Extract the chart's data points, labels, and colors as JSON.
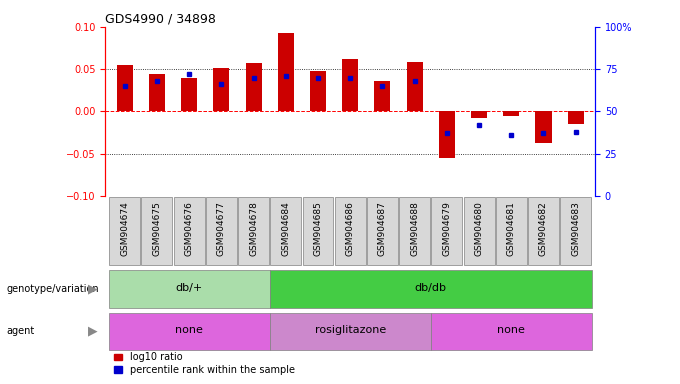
{
  "title": "GDS4990 / 34898",
  "samples": [
    "GSM904674",
    "GSM904675",
    "GSM904676",
    "GSM904677",
    "GSM904678",
    "GSM904684",
    "GSM904685",
    "GSM904686",
    "GSM904687",
    "GSM904688",
    "GSM904679",
    "GSM904680",
    "GSM904681",
    "GSM904682",
    "GSM904683"
  ],
  "log10_ratio": [
    0.055,
    0.044,
    0.039,
    0.051,
    0.057,
    0.093,
    0.048,
    0.062,
    0.036,
    0.059,
    -0.055,
    -0.008,
    -0.005,
    -0.038,
    -0.015
  ],
  "percentile_rank": [
    0.65,
    0.68,
    0.72,
    0.66,
    0.7,
    0.71,
    0.7,
    0.7,
    0.65,
    0.68,
    0.37,
    0.42,
    0.36,
    0.37,
    0.38
  ],
  "genotype": [
    {
      "label": "db/+",
      "start": 0,
      "end": 5,
      "color": "#aaddaa"
    },
    {
      "label": "db/db",
      "start": 5,
      "end": 15,
      "color": "#44cc44"
    }
  ],
  "agent": [
    {
      "label": "none",
      "start": 0,
      "end": 5,
      "color": "#dd66dd"
    },
    {
      "label": "rosiglitazone",
      "start": 5,
      "end": 10,
      "color": "#cc88cc"
    },
    {
      "label": "none",
      "start": 10,
      "end": 15,
      "color": "#dd66dd"
    }
  ],
  "bar_color": "#cc0000",
  "dot_color": "#0000cc",
  "ylim": [
    -0.1,
    0.1
  ],
  "yticks_left": [
    -0.1,
    -0.05,
    0,
    0.05,
    0.1
  ],
  "yticks_right": [
    0,
    25,
    50,
    75,
    100
  ],
  "hlines_dotted": [
    -0.05,
    0.05
  ],
  "hline_zero": 0,
  "legend_items": [
    "log10 ratio",
    "percentile rank within the sample"
  ],
  "legend_colors": [
    "#cc0000",
    "#0000cc"
  ],
  "label_genotype": "genotype/variation",
  "label_agent": "agent",
  "bg_color": "white",
  "spine_color_left": "red",
  "spine_color_right": "blue",
  "tick_fontsize": 7,
  "bar_width": 0.5,
  "sample_fontsize": 6.5,
  "annotation_fontsize": 8,
  "title_fontsize": 9
}
